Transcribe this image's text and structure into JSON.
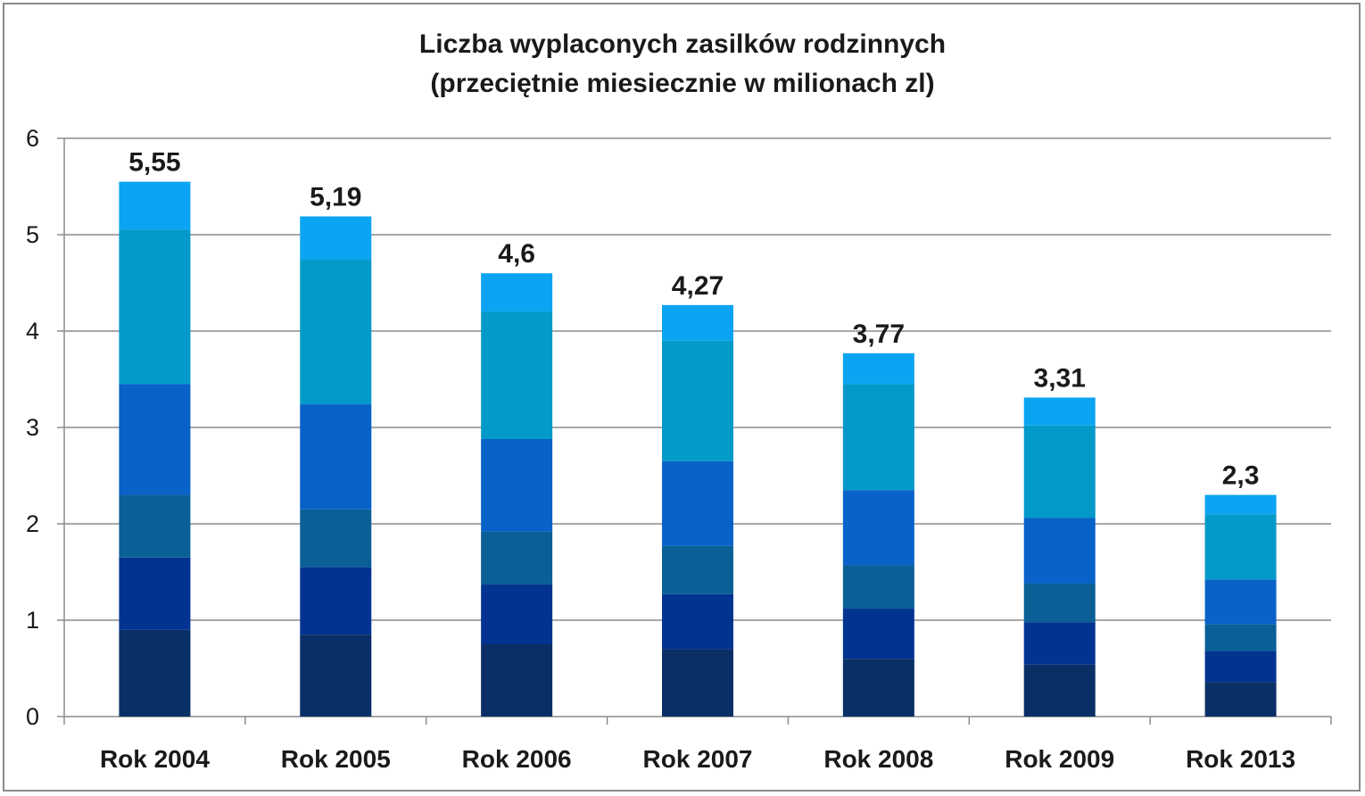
{
  "chart_data": {
    "type": "bar",
    "stacked": true,
    "title": "Liczba wyplaconych zasilków rodzinnych",
    "subtitle": "(przeciętnie miesiecznie w milionach zl)",
    "xlabel": "",
    "ylabel": "",
    "ylim": [
      0,
      6
    ],
    "yticks": [
      "0",
      "1",
      "2",
      "3",
      "4",
      "5",
      "6"
    ],
    "grid": true,
    "legend": "none",
    "categories": [
      "Rok 2004",
      "Rok 2005",
      "Rok 2006",
      "Rok 2007",
      "Rok 2008",
      "Rok 2009",
      "Rok 2013"
    ],
    "totals": [
      5.55,
      5.19,
      4.6,
      4.27,
      3.77,
      3.31,
      2.3
    ],
    "total_labels": [
      "5,55",
      "5,19",
      "4,6",
      "4,27",
      "3,77",
      "3,31",
      "2,3"
    ],
    "series": [
      {
        "color": "#0a2f66",
        "values": [
          0.9,
          0.85,
          0.75,
          0.7,
          0.6,
          0.54,
          0.36
        ]
      },
      {
        "color": "#033391",
        "values": [
          0.75,
          0.7,
          0.62,
          0.57,
          0.52,
          0.44,
          0.32
        ]
      },
      {
        "color": "#0a5f96",
        "values": [
          0.65,
          0.6,
          0.55,
          0.5,
          0.45,
          0.4,
          0.28
        ]
      },
      {
        "color": "#0862c8",
        "values": [
          1.15,
          1.09,
          0.96,
          0.88,
          0.78,
          0.68,
          0.46
        ]
      },
      {
        "color": "#0399c8",
        "values": [
          1.6,
          1.5,
          1.32,
          1.25,
          1.1,
          0.96,
          0.68
        ]
      },
      {
        "color": "#0aa4f2",
        "values": [
          0.5,
          0.45,
          0.4,
          0.37,
          0.32,
          0.29,
          0.2
        ]
      }
    ]
  }
}
